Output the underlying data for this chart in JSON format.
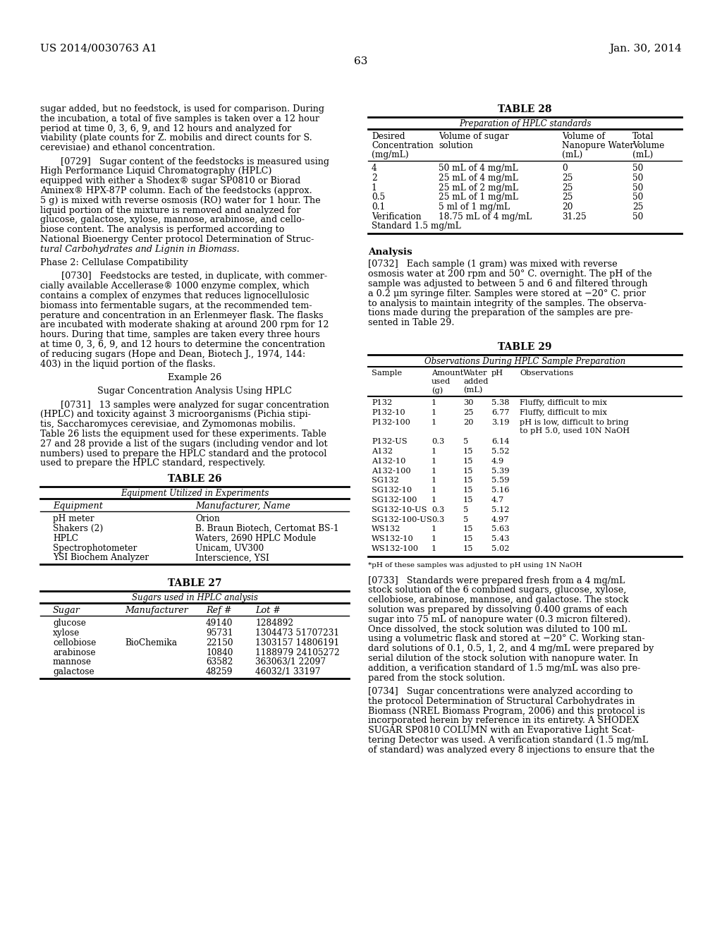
{
  "page_header_left": "US 2014/0030763 A1",
  "page_header_right": "Jan. 30, 2014",
  "page_number": "63",
  "table26_title": "TABLE 26",
  "table26_subtitle": "Equipment Utilized in Experiments",
  "table26_headers": [
    "Equipment",
    "Manufacturer, Name"
  ],
  "table26_rows": [
    [
      "pH meter",
      "Orion"
    ],
    [
      "Shakers (2)",
      "B. Braun Biotech, Certomat BS-1"
    ],
    [
      "HPLC",
      "Waters, 2690 HPLC Module"
    ],
    [
      "Spectrophotometer",
      "Unicam, UV300"
    ],
    [
      "YSI Biochem Analyzer",
      "Interscience, YSI"
    ]
  ],
  "table27_title": "TABLE 27",
  "table27_subtitle": "Sugars used in HPLC analysis",
  "table27_headers": [
    "Sugar",
    "Manufacturer",
    "Ref #",
    "Lot #"
  ],
  "table27_rows": [
    [
      "glucose",
      "",
      "49140",
      "1284892"
    ],
    [
      "xylose",
      "",
      "95731",
      "1304473 51707231"
    ],
    [
      "cellobiose",
      "BioChemika",
      "22150",
      "1303157 14806191"
    ],
    [
      "arabinose",
      "",
      "10840",
      "1188979 24105272"
    ],
    [
      "mannose",
      "",
      "63582",
      "363063/1 22097"
    ],
    [
      "galactose",
      "",
      "48259",
      "46032/1 33197"
    ]
  ],
  "table28_title": "TABLE 28",
  "table28_subtitle": "Preparation of HPLC standards",
  "table28_rows": [
    [
      "Desired\nConcentration\n(mg/mL)",
      "Volume of sugar\nsolution",
      "Volume of\nNanopure Water\n(mL)",
      "Total\nVolume\n(mL)"
    ],
    [
      "4",
      "50 mL of 4 mg/mL",
      "0",
      "50"
    ],
    [
      "2",
      "25 mL of 4 mg/mL",
      "25",
      "50"
    ],
    [
      "1",
      "25 mL of 2 mg/mL",
      "25",
      "50"
    ],
    [
      "0.5",
      "25 mL of 1 mg/mL",
      "25",
      "50"
    ],
    [
      "0.1",
      "5 ml of 1 mg/mL",
      "20",
      "25"
    ],
    [
      "Verification\nStandard 1.5 mg/mL",
      "18.75 mL of 4 mg/mL",
      "31.25",
      "50"
    ]
  ],
  "table29_title": "TABLE 29",
  "table29_subtitle": "Observations During HPLC Sample Preparation",
  "table29_col_headers": [
    "Sample",
    "Amount\nused\n(g)",
    "Water\nadded\n(mL)",
    "pH",
    "Observations"
  ],
  "table29_rows": [
    [
      "P132",
      "1",
      "30",
      "5.38",
      "Fluffy, difficult to mix"
    ],
    [
      "P132-10",
      "1",
      "25",
      "6.77",
      "Fluffy, difficult to mix"
    ],
    [
      "P132-100",
      "1",
      "20",
      "3.19",
      "pH is low, difficult to bring\nto pH 5.0, used 10N NaOH"
    ],
    [
      "P132-US",
      "0.3",
      "5",
      "6.14",
      ""
    ],
    [
      "A132",
      "1",
      "15",
      "5.52",
      ""
    ],
    [
      "A132-10",
      "1",
      "15",
      "4.9",
      ""
    ],
    [
      "A132-100",
      "1",
      "15",
      "5.39",
      ""
    ],
    [
      "SG132",
      "1",
      "15",
      "5.59",
      ""
    ],
    [
      "SG132-10",
      "1",
      "15",
      "5.16",
      ""
    ],
    [
      "SG132-100",
      "1",
      "15",
      "4.7",
      ""
    ],
    [
      "SG132-10-US",
      "0.3",
      "5",
      "5.12",
      ""
    ],
    [
      "SG132-100-US",
      "0.3",
      "5",
      "4.97",
      ""
    ],
    [
      "WS132",
      "1",
      "15",
      "5.63",
      ""
    ],
    [
      "WS132-10",
      "1",
      "15",
      "5.43",
      ""
    ],
    [
      "WS132-100",
      "1",
      "15",
      "5.02",
      ""
    ]
  ],
  "table29_footnote": "*pH of these samples was adjusted to pH using 1N NaOH"
}
